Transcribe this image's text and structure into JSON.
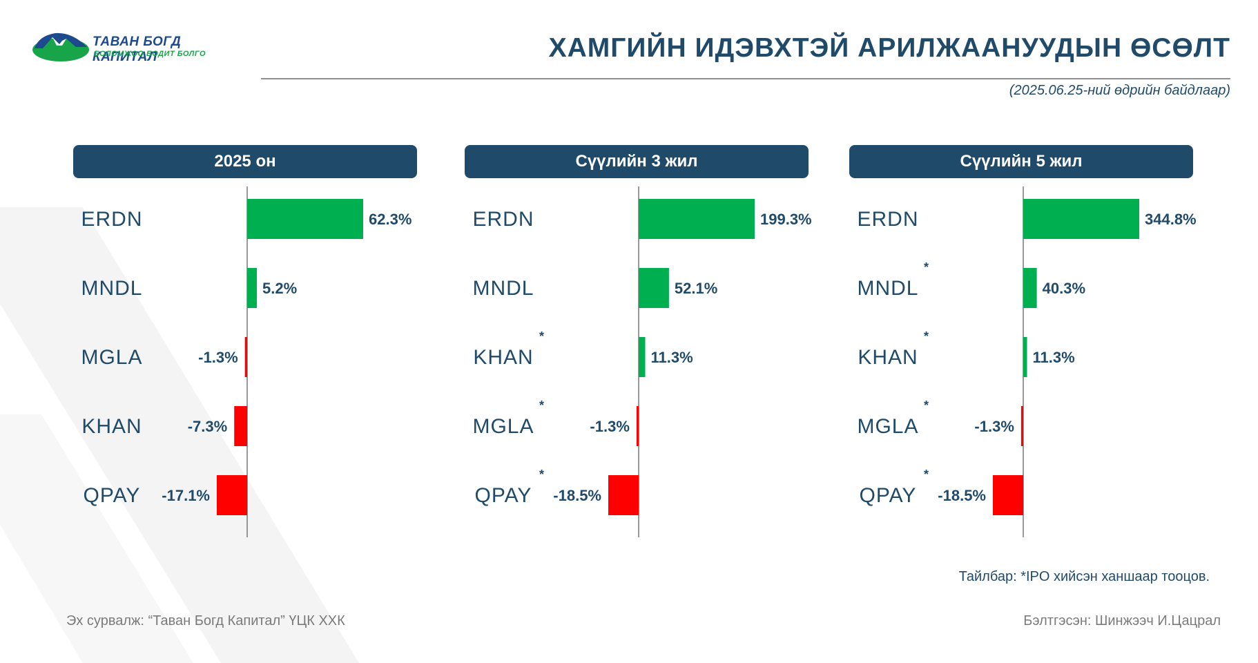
{
  "logo": {
    "brand": "ТАВАН БОГД КАПИТАЛ",
    "tagline": "БОЛОМЖОО БОДИТ БОЛГО",
    "colors": {
      "blue": "#1d4a8e",
      "green": "#18a54a"
    }
  },
  "header": {
    "title": "ХАМГИЙН ИДЭВХТЭЙ АРИЛЖААНУУДЫН ӨСӨЛТ",
    "date_note": "(2025.06.25-ний өдрийн байдлаар)"
  },
  "colors": {
    "positive": "#00b050",
    "negative": "#ff0000",
    "header_bg": "#1f4a6a",
    "label": "#1f4a6a"
  },
  "chart_data": [
    {
      "type": "bar",
      "orientation": "horizontal",
      "title": "2025 он",
      "categories": [
        "ERDN",
        "MNDL",
        "MGLA",
        "KHAN",
        "QPAY"
      ],
      "values": [
        62.3,
        5.2,
        -1.3,
        -7.3,
        -17.1
      ],
      "value_labels": [
        "62.3%",
        "5.2%",
        "-1.3%",
        "-7.3%",
        "-17.1%"
      ],
      "ipo_marked": [
        false,
        false,
        false,
        false,
        false
      ],
      "xlim": [
        -17.1,
        62.3
      ]
    },
    {
      "type": "bar",
      "orientation": "horizontal",
      "title": "Сүүлийн 3 жил",
      "categories": [
        "ERDN",
        "MNDL",
        "KHAN",
        "MGLA",
        "QPAY"
      ],
      "values": [
        199.3,
        52.1,
        11.3,
        -1.3,
        -18.5
      ],
      "value_labels": [
        "199.3%",
        "52.1%",
        "11.3%",
        "-1.3%",
        "-18.5%"
      ],
      "ipo_marked": [
        false,
        false,
        true,
        true,
        true
      ],
      "xlim": [
        -18.5,
        199.3
      ]
    },
    {
      "type": "bar",
      "orientation": "horizontal",
      "title": "Сүүлийн 5 жил",
      "categories": [
        "ERDN",
        "MNDL",
        "KHAN",
        "MGLA",
        "QPAY"
      ],
      "values": [
        344.8,
        40.3,
        11.3,
        -1.3,
        -18.5
      ],
      "value_labels": [
        "344.8%",
        "40.3%",
        "11.3%",
        "-1.3%",
        "-18.5%"
      ],
      "ipo_marked": [
        false,
        true,
        true,
        true,
        true
      ],
      "xlim": [
        -18.5,
        344.8
      ]
    }
  ],
  "footer": {
    "note": "Тайлбар: *IPO хийсэн ханшаар тооцов.",
    "source": "Эх сурвалж: “Таван Богд Капитал” ҮЦК ХХК",
    "prepared_by": "Бэлтгэсэн: Шинжээч И.Цацрал"
  }
}
